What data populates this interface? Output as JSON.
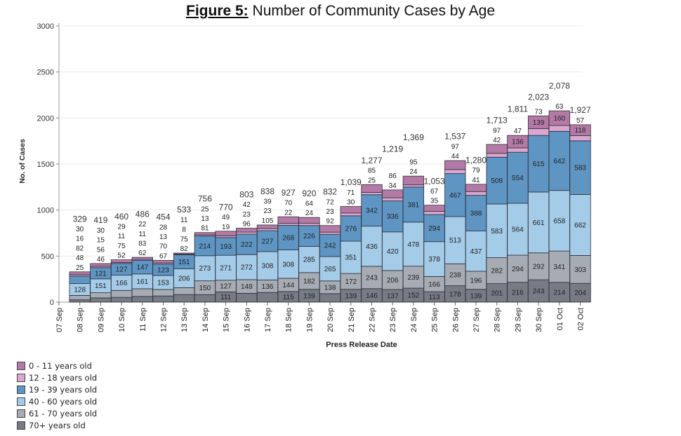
{
  "title_prefix": "Figure 5:",
  "title_text": " Number of Community Cases by Age",
  "chart_data": {
    "type": "bar",
    "stacked": true,
    "title": "Figure 5: Number of Community Cases by Age",
    "xlabel": "Press Release Date",
    "ylabel": "No. of Cases",
    "ylim": [
      0,
      3000
    ],
    "yticks": [
      0,
      500,
      1000,
      1500,
      2000,
      2500,
      3000
    ],
    "ytick_labels": [
      "0",
      "500",
      "1000",
      "1500",
      "2000",
      "2500",
      "3000"
    ],
    "grid": true,
    "legend_position": "bottom-left",
    "x_tick_labels": [
      "07 Sep",
      "08 Sep",
      "09 Sep",
      "10 Sep",
      "11 Sep",
      "12 Sep",
      "13 Sep",
      "14 Sep",
      "15 Sep",
      "16 Sep",
      "17 Sep",
      "18 Sep",
      "19 Sep",
      "20 Sep",
      "21 Sep",
      "22 Sep",
      "23 Sep",
      "24 Sep",
      "25 Sep",
      "26 Sep",
      "27 Sep",
      "28 Sep",
      "29 Sep",
      "30 Sep",
      "01 Oct",
      "02 Oct"
    ],
    "categories": [
      "08 Sep",
      "09 Sep",
      "10 Sep",
      "11 Sep",
      "12 Sep",
      "13 Sep",
      "14 Sep",
      "15 Sep",
      "16 Sep",
      "17 Sep",
      "18 Sep",
      "19 Sep",
      "20 Sep",
      "21 Sep",
      "22 Sep",
      "23 Sep",
      "24 Sep",
      "25 Sep",
      "26 Sep",
      "27 Sep",
      "28 Sep",
      "29 Sep",
      "30 Sep",
      "01 Oct",
      "02 Oct"
    ],
    "totals": [
      "329",
      "419",
      "460",
      "486",
      "454",
      "533",
      "756",
      "770",
      "803",
      "838",
      "927",
      "920",
      "832",
      "1,039",
      "1,277",
      "1,219",
      "1,369",
      "1,053",
      "1,537",
      "1,280",
      "1,713",
      "1,811",
      "2,023",
      "2,078",
      "1,927"
    ],
    "series": [
      {
        "name": "70+ years old",
        "color": "#767b86",
        "values": [
          25,
          46,
          52,
          62,
          67,
          82,
          81,
          111,
          96,
          105,
          115,
          139,
          92,
          139,
          146,
          137,
          152,
          113,
          178,
          139,
          201,
          216,
          243,
          214,
          204
        ]
      },
      {
        "name": "61 - 70 years old",
        "color": "#a7abb4",
        "values": [
          48,
          56,
          75,
          83,
          70,
          75,
          150,
          127,
          148,
          136,
          144,
          182,
          138,
          172,
          243,
          206,
          239,
          166,
          238,
          196,
          282,
          294,
          292,
          341,
          303
        ]
      },
      {
        "name": "40 - 60 years old",
        "color": "#a4cbe8",
        "values": [
          128,
          151,
          166,
          161,
          153,
          206,
          273,
          271,
          272,
          308,
          308,
          285,
          265,
          351,
          436,
          420,
          478,
          378,
          513,
          437,
          583,
          564,
          661,
          658,
          662
        ]
      },
      {
        "name": "19 - 39 years old",
        "color": "#5e95c3",
        "values": [
          82,
          121,
          127,
          147,
          123,
          151,
          214,
          193,
          222,
          227,
          268,
          226,
          242,
          276,
          342,
          336,
          381,
          294,
          467,
          388,
          508,
          554,
          615,
          642,
          583
        ]
      },
      {
        "name": "12 - 18 years old",
        "color": "#d9a7cf",
        "values": [
          16,
          15,
          11,
          11,
          13,
          8,
          13,
          19,
          23,
          23,
          22,
          24,
          23,
          30,
          25,
          34,
          24,
          35,
          44,
          41,
          42,
          47,
          73,
          63,
          57
        ]
      },
      {
        "name": "0 - 11 years old",
        "color": "#b47aa6",
        "values": [
          30,
          30,
          29,
          22,
          28,
          11,
          25,
          49,
          42,
          39,
          70,
          64,
          72,
          71,
          85,
          86,
          95,
          67,
          97,
          79,
          97,
          136,
          139,
          160,
          118
        ]
      }
    ]
  }
}
